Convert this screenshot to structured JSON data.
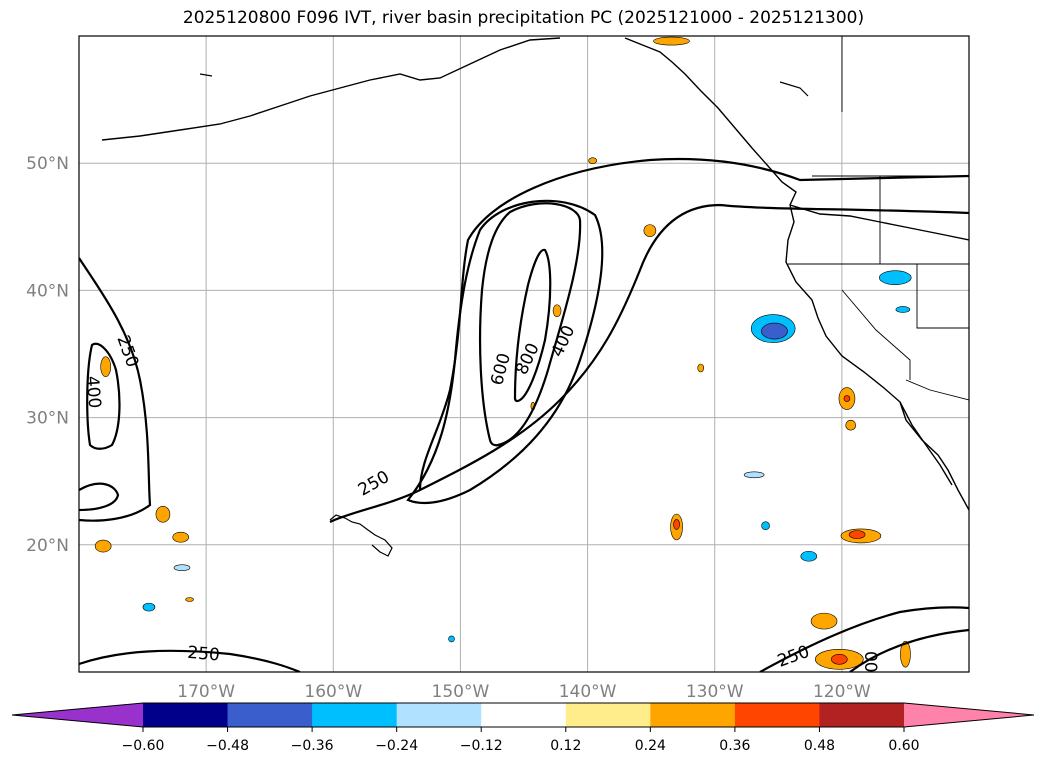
{
  "title": "2025120800 F096 IVT, river basin precipitation PC (2025121000 - 2025121300)",
  "map": {
    "lon_range": [
      -180,
      -110
    ],
    "lat_range": [
      10,
      60
    ],
    "lat_labels": [
      {
        "value": 50,
        "text": "50°N"
      },
      {
        "value": 40,
        "text": "40°N"
      },
      {
        "value": 30,
        "text": "30°N"
      },
      {
        "value": 20,
        "text": "20°N"
      }
    ],
    "lon_labels": [
      {
        "value": -170,
        "text": "170°W"
      },
      {
        "value": -160,
        "text": "160°W"
      },
      {
        "value": -150,
        "text": "150°W"
      },
      {
        "value": -140,
        "text": "140°W"
      },
      {
        "value": -130,
        "text": "130°W"
      },
      {
        "value": -120,
        "text": "120°W"
      }
    ],
    "grid": true,
    "gridline_color": "#b0b0b0"
  },
  "contour_labels": [
    {
      "text": "250",
      "lon": -176.2,
      "lat": 35.2,
      "angle": 70
    },
    {
      "text": "400",
      "lon": -178.9,
      "lat": 32.0,
      "angle": 85
    },
    {
      "text": "600",
      "lon": -146.8,
      "lat": 33.8,
      "angle": -75
    },
    {
      "text": "800",
      "lon": -144.7,
      "lat": 34.6,
      "angle": -65
    },
    {
      "text": "400",
      "lon": -141.9,
      "lat": 36.0,
      "angle": -65
    },
    {
      "text": "250",
      "lon": -156.8,
      "lat": 24.8,
      "angle": -30
    },
    {
      "text": "250",
      "lon": -170.2,
      "lat": 11.4,
      "angle": 5
    },
    {
      "text": "250",
      "lon": -123.8,
      "lat": 11.2,
      "angle": -20
    },
    {
      "text": "00",
      "lon": -117.8,
      "lat": 10.8,
      "angle": 90
    }
  ],
  "colorbar": {
    "colors": [
      "#9932cc",
      "#00008b",
      "#3a5fcd",
      "#00bfff",
      "#b0e2ff",
      "#ffffff",
      "#ffec8b",
      "#ffa500",
      "#ff4500",
      "#b22222",
      "#ff82ab"
    ],
    "ticks": [
      "−0.60",
      "−0.48",
      "−0.36",
      "−0.24",
      "−0.12",
      "0.12",
      "0.24",
      "0.36",
      "0.48",
      "0.60"
    ]
  },
  "precip_patches": [
    {
      "lon": -125.4,
      "lat": 37.0,
      "rx": 22,
      "ry": 14,
      "color": "#00bfff"
    },
    {
      "lon": -125.3,
      "lat": 36.8,
      "rx": 13,
      "ry": 8,
      "color": "#3a5fcd"
    },
    {
      "lon": -115.8,
      "lat": 41.0,
      "rx": 16,
      "ry": 7,
      "color": "#00bfff"
    },
    {
      "lon": -118.5,
      "lat": 20.7,
      "rx": 20,
      "ry": 7,
      "color": "#ffa500"
    },
    {
      "lon": -118.8,
      "lat": 20.8,
      "rx": 8,
      "ry": 4,
      "color": "#ff4500"
    },
    {
      "lon": -133.0,
      "lat": 21.4,
      "rx": 6,
      "ry": 13,
      "color": "#ffa500"
    },
    {
      "lon": -133.0,
      "lat": 21.6,
      "rx": 3,
      "ry": 5,
      "color": "#ff4500"
    },
    {
      "lon": -119.6,
      "lat": 31.5,
      "rx": 8,
      "ry": 11,
      "color": "#ffa500"
    },
    {
      "lon": -119.6,
      "lat": 31.5,
      "rx": 3,
      "ry": 3,
      "color": "#ff4500"
    },
    {
      "lon": -119.3,
      "lat": 29.4,
      "rx": 5,
      "ry": 5,
      "color": "#ffa500"
    },
    {
      "lon": -120.2,
      "lat": 11.0,
      "rx": 24,
      "ry": 10,
      "color": "#ffa500"
    },
    {
      "lon": -120.2,
      "lat": 11.0,
      "rx": 8,
      "ry": 5,
      "color": "#ff4500"
    },
    {
      "lon": -121.4,
      "lat": 14.0,
      "rx": 13,
      "ry": 8,
      "color": "#ffa500"
    },
    {
      "lon": -115.0,
      "lat": 11.4,
      "rx": 5,
      "ry": 13,
      "color": "#ffa500"
    },
    {
      "lon": -177.9,
      "lat": 34.0,
      "rx": 5,
      "ry": 10,
      "color": "#ffa500"
    },
    {
      "lon": -173.4,
      "lat": 22.4,
      "rx": 7,
      "ry": 8,
      "color": "#ffa500"
    },
    {
      "lon": -172.0,
      "lat": 20.6,
      "rx": 8,
      "ry": 5,
      "color": "#ffa500"
    },
    {
      "lon": -178.1,
      "lat": 19.9,
      "rx": 8,
      "ry": 6,
      "color": "#ffa500"
    },
    {
      "lon": -142.4,
      "lat": 38.4,
      "rx": 4,
      "ry": 6,
      "color": "#ffa500"
    },
    {
      "lon": -135.1,
      "lat": 44.7,
      "rx": 6,
      "ry": 6,
      "color": "#ffa500"
    },
    {
      "lon": -139.6,
      "lat": 50.2,
      "rx": 4,
      "ry": 3,
      "color": "#ffa500"
    },
    {
      "lon": -133.4,
      "lat": 59.6,
      "rx": 18,
      "ry": 4,
      "color": "#ffa500"
    },
    {
      "lon": -122.6,
      "lat": 19.1,
      "rx": 8,
      "ry": 5,
      "color": "#00bfff"
    },
    {
      "lon": -174.5,
      "lat": 15.1,
      "rx": 6,
      "ry": 4,
      "color": "#00bfff"
    },
    {
      "lon": -171.9,
      "lat": 18.2,
      "rx": 8,
      "ry": 3,
      "color": "#b0e2ff"
    },
    {
      "lon": -126.9,
      "lat": 25.5,
      "rx": 10,
      "ry": 3,
      "color": "#b0e2ff"
    },
    {
      "lon": -131.1,
      "lat": 33.9,
      "rx": 3,
      "ry": 4,
      "color": "#ffa500"
    },
    {
      "lon": -126.0,
      "lat": 21.5,
      "rx": 4,
      "ry": 4,
      "color": "#00bfff"
    },
    {
      "lon": -150.7,
      "lat": 12.6,
      "rx": 3,
      "ry": 3,
      "color": "#00bfff"
    },
    {
      "lon": -144.3,
      "lat": 30.9,
      "rx": 2,
      "ry": 4,
      "color": "#ffa500"
    },
    {
      "lon": -115.2,
      "lat": 38.5,
      "rx": 7,
      "ry": 3,
      "color": "#00bfff"
    },
    {
      "lon": -171.3,
      "lat": 15.7,
      "rx": 4,
      "ry": 2,
      "color": "#ffa500"
    }
  ]
}
